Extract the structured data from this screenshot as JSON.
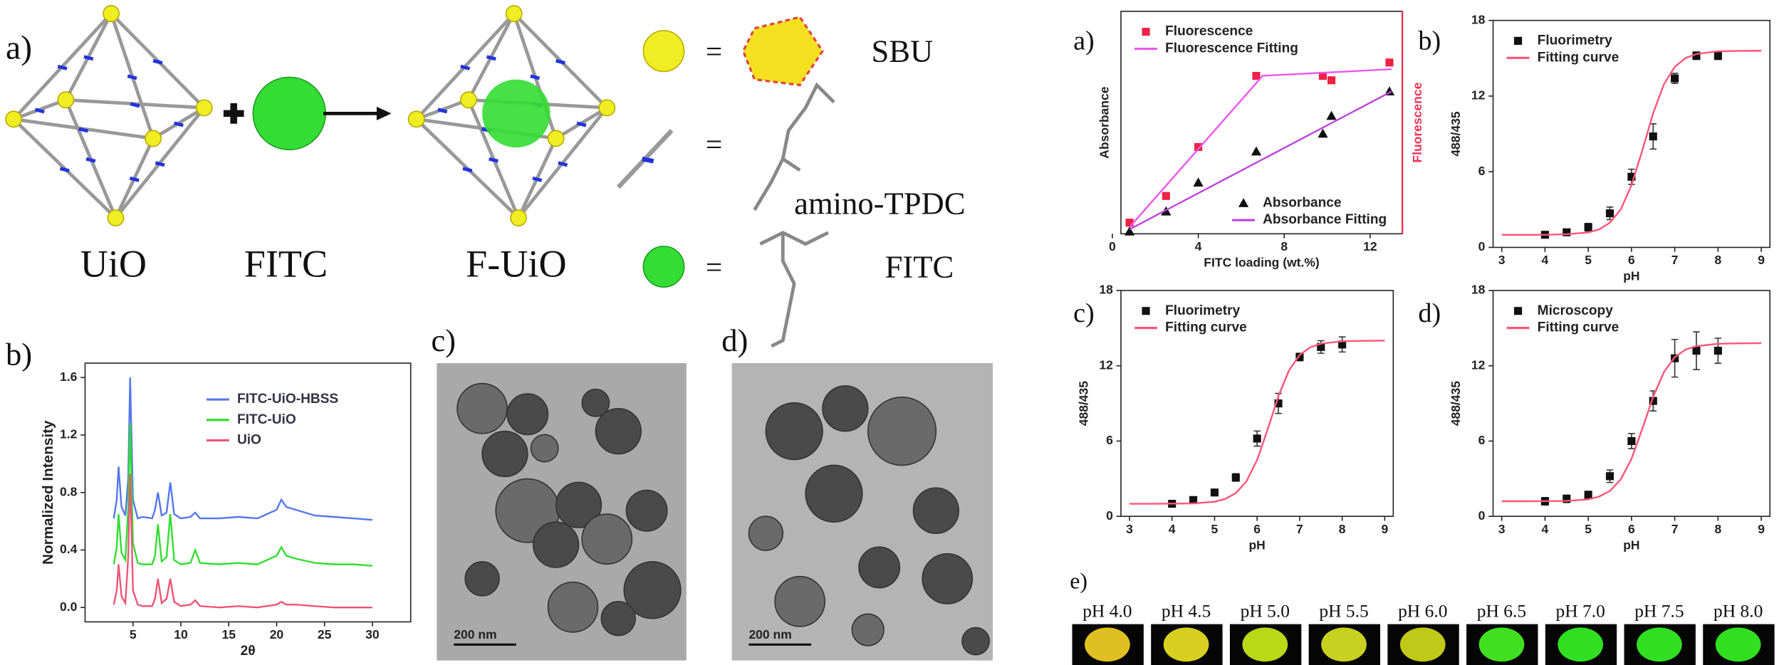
{
  "scheme": {
    "panel": "a)",
    "labels": [
      "UiO",
      "FITC",
      "F-UiO"
    ],
    "legend": [
      {
        "sign": "=",
        "label": "SBU"
      },
      {
        "sign": "=",
        "label": "amino-TPDC"
      },
      {
        "sign": "=",
        "label": "FITC"
      }
    ]
  },
  "tem": [
    {
      "panel": "c)",
      "scale_bar": "200 nm"
    },
    {
      "panel": "d)",
      "scale_bar": "200 nm"
    }
  ],
  "microscopy": {
    "panel": "e)",
    "labels": [
      "pH 4.0",
      "pH 4.5",
      "pH 5.0",
      "pH 5.5",
      "pH 6.0",
      "pH 6.5",
      "pH 7.0",
      "pH 7.5",
      "pH 8.0"
    ]
  },
  "chart_data": [
    {
      "type": "line",
      "panel": "b)",
      "xlabel": "2θ",
      "ylabel": "Normalized Intensity",
      "x": [
        3,
        3.3,
        3.5,
        3.8,
        4.2,
        4.5,
        4.7,
        5,
        5.5,
        6,
        7,
        7.3,
        7.6,
        8,
        8.5,
        8.9,
        9.3,
        10,
        11,
        11.5,
        12,
        14,
        16,
        18,
        20,
        20.5,
        21,
        22,
        24,
        26,
        28,
        30
      ],
      "series": [
        {
          "name": "FITC-UiO-HBSS",
          "color": "#5577ee",
          "values": [
            0.62,
            0.75,
            0.98,
            0.7,
            0.64,
            0.9,
            1.6,
            0.75,
            0.62,
            0.63,
            0.62,
            0.68,
            0.8,
            0.64,
            0.66,
            0.87,
            0.65,
            0.62,
            0.63,
            0.66,
            0.62,
            0.62,
            0.63,
            0.62,
            0.68,
            0.75,
            0.7,
            0.68,
            0.64,
            0.63,
            0.62,
            0.61
          ]
        },
        {
          "name": "FITC-UiO",
          "color": "#33dd33",
          "values": [
            0.3,
            0.42,
            0.65,
            0.38,
            0.33,
            0.7,
            1.28,
            0.45,
            0.31,
            0.3,
            0.3,
            0.36,
            0.58,
            0.32,
            0.35,
            0.65,
            0.33,
            0.3,
            0.31,
            0.4,
            0.31,
            0.3,
            0.31,
            0.3,
            0.36,
            0.42,
            0.36,
            0.34,
            0.31,
            0.3,
            0.3,
            0.29
          ]
        },
        {
          "name": "UiO",
          "color": "#ee5577",
          "values": [
            0.02,
            0.12,
            0.3,
            0.08,
            0.03,
            0.35,
            0.93,
            0.12,
            0.02,
            0.01,
            0.01,
            0.06,
            0.2,
            0.03,
            0.06,
            0.2,
            0.04,
            0.01,
            0.02,
            0.05,
            0.01,
            0,
            0.01,
            0,
            0.02,
            0.04,
            0.02,
            0.02,
            0.01,
            0,
            0,
            0
          ]
        }
      ],
      "xlim": [
        0,
        34
      ],
      "xticks": [
        5,
        10,
        15,
        20,
        25,
        30
      ],
      "ylim": [
        -0.1,
        1.7
      ],
      "yticks": [
        {
          "value": 0,
          "label": "0.0"
        },
        {
          "value": 0.4,
          "label": "0.4"
        },
        {
          "value": 0.8,
          "label": "0.8"
        },
        {
          "value": 1.2,
          "label": "1.2"
        },
        {
          "value": 1.6,
          "label": "1.6"
        }
      ],
      "legend": "upper right"
    },
    {
      "type": "scatter",
      "panel": "a)",
      "xlabel": "FITC loading (wt.%)",
      "ylabel": "Absorbance",
      "y2label": "Fluorescence",
      "y2color": "#ee3355",
      "series": [
        {
          "name": "Fluorescence",
          "color": "#ee2244",
          "marker": "square",
          "axis": "y2",
          "legend": "upper left",
          "x": [
            0.8,
            2.5,
            4,
            6.7,
            9.8,
            10.2,
            12.9
          ],
          "values": [
            0.5,
            1.7,
            3.9,
            7.1,
            7.1,
            6.9,
            7.7
          ]
        },
        {
          "name": "Fluorescence Fitting",
          "color": "#ee55ee",
          "style": "line",
          "axis": "y2",
          "legend": "upper left",
          "x": [
            0.8,
            7,
            13
          ],
          "values": [
            0.3,
            7.1,
            7.4
          ]
        },
        {
          "name": "Absorbance",
          "color": "#111111",
          "marker": "triangle",
          "legend": "lower right",
          "x": [
            0.8,
            2.5,
            4,
            6.7,
            9.8,
            10.2,
            12.9
          ],
          "values": [
            0.1,
            1,
            2.3,
            3.7,
            4.5,
            5.3,
            6.4
          ]
        },
        {
          "name": "Absorbance Fitting",
          "color": "#bb44dd",
          "style": "line",
          "legend": "lower right",
          "x": [
            0.8,
            13
          ],
          "values": [
            0.2,
            6.4
          ]
        }
      ],
      "xlim": [
        0.4,
        13.5
      ],
      "xticks": [
        0,
        4,
        8,
        12
      ],
      "ylim": [
        0,
        10
      ],
      "y2lim": [
        0,
        10
      ]
    },
    {
      "type": "scatter",
      "panel": "b)",
      "xlabel": "pH",
      "ylabel": "488/435",
      "series": [
        {
          "name": "Fluorimetry",
          "color": "#111111",
          "marker": "square",
          "x": [
            4,
            4.5,
            5,
            5.5,
            6,
            6.5,
            7,
            7.5,
            8
          ],
          "values": [
            1,
            1.2,
            1.6,
            2.7,
            5.6,
            8.8,
            13.4,
            15.2,
            15.2
          ],
          "errors": [
            0.2,
            0.2,
            0.3,
            0.5,
            0.6,
            1,
            0.4,
            0.3,
            0.3
          ]
        },
        {
          "name": "Fitting curve",
          "color": "#ff5577",
          "style": "line",
          "x": [
            3,
            3.5,
            4,
            4.5,
            5,
            5.25,
            5.5,
            5.75,
            6,
            6.25,
            6.5,
            6.75,
            7,
            7.25,
            7.5,
            8,
            8.5,
            9
          ],
          "values": [
            1,
            1,
            1,
            1.04,
            1.19,
            1.42,
            1.95,
            3.01,
            4.93,
            7.69,
            10.65,
            12.94,
            14.32,
            15.02,
            15.34,
            15.55,
            15.59,
            15.6
          ]
        }
      ],
      "xlim": [
        2.8,
        9.2
      ],
      "xticks": [
        3,
        4,
        5,
        6,
        7,
        8,
        9
      ],
      "ylim": [
        0,
        18
      ],
      "yticks": [
        0,
        6,
        12,
        18
      ],
      "legend": "upper left"
    },
    {
      "type": "scatter",
      "panel": "c)",
      "xlabel": "pH",
      "ylabel": "488/435",
      "series": [
        {
          "name": "Fluorimetry",
          "color": "#111111",
          "marker": "square",
          "x": [
            4,
            4.5,
            5,
            5.5,
            6,
            6.5,
            7,
            7.5,
            8
          ],
          "values": [
            1,
            1.3,
            1.9,
            3.1,
            6.2,
            9,
            12.7,
            13.5,
            13.7
          ],
          "errors": [
            0.2,
            0.2,
            0.2,
            0.3,
            0.6,
            0.8,
            0.3,
            0.5,
            0.6
          ]
        },
        {
          "name": "Fitting curve",
          "color": "#ff5577",
          "style": "line",
          "x": [
            3,
            3.5,
            4,
            4.5,
            5,
            5.25,
            5.5,
            5.75,
            6,
            6.25,
            6.5,
            6.75,
            7,
            7.25,
            7.5,
            8,
            8.5,
            9
          ],
          "values": [
            1,
            1,
            1.01,
            1.03,
            1.17,
            1.38,
            1.85,
            2.79,
            4.5,
            6.95,
            9.59,
            11.63,
            12.86,
            13.48,
            13.77,
            13.96,
            13.99,
            14
          ]
        }
      ],
      "xlim": [
        2.8,
        9.2
      ],
      "xticks": [
        3,
        4,
        5,
        6,
        7,
        8,
        9
      ],
      "ylim": [
        0,
        18
      ],
      "yticks": [
        0,
        6,
        12,
        18
      ],
      "legend": "upper left"
    },
    {
      "type": "scatter",
      "panel": "d)",
      "xlabel": "pH",
      "ylabel": "488/435",
      "series": [
        {
          "name": "Microscopy",
          "color": "#111111",
          "marker": "square",
          "x": [
            4,
            4.5,
            5,
            5.5,
            6,
            6.5,
            7,
            7.5,
            8
          ],
          "values": [
            1.2,
            1.4,
            1.7,
            3.2,
            6,
            9.2,
            12.6,
            13.2,
            13.2
          ],
          "errors": [
            0.3,
            0.3,
            0.3,
            0.5,
            0.6,
            0.8,
            1.5,
            1.5,
            1
          ]
        },
        {
          "name": "Fitting curve",
          "color": "#ff5577",
          "style": "line",
          "x": [
            3,
            3.5,
            4,
            4.5,
            5,
            5.25,
            5.5,
            5.75,
            6,
            6.25,
            6.5,
            6.75,
            7,
            7.25,
            7.5,
            8,
            8.5,
            9
          ],
          "values": [
            1.2,
            1.2,
            1.21,
            1.23,
            1.36,
            1.57,
            2.02,
            2.94,
            4.59,
            6.97,
            9.53,
            11.51,
            12.69,
            13.3,
            13.57,
            13.76,
            13.79,
            13.8
          ]
        }
      ],
      "xlim": [
        2.8,
        9.2
      ],
      "xticks": [
        3,
        4,
        5,
        6,
        7,
        8,
        9
      ],
      "ylim": [
        0,
        18
      ],
      "yticks": [
        0,
        6,
        12,
        18
      ],
      "legend": "upper left"
    }
  ]
}
